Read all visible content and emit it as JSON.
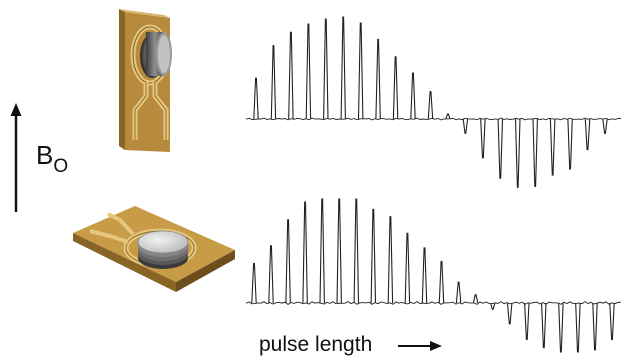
{
  "labels": {
    "field": "B",
    "field_subscript": "O",
    "pulse_length": "pulse length"
  },
  "colors": {
    "board": "#c89b46",
    "board_dark": "#8a6326",
    "board_light": "#e0c07a",
    "trace": "#6a4a1c",
    "sample": "#9c9c9c",
    "sample_dark": "#505050",
    "sample_light": "#d8d8d8",
    "spectrum": "#222222"
  },
  "spectra": {
    "top": [
      0.4,
      0.72,
      0.85,
      0.93,
      0.98,
      1.0,
      0.94,
      0.78,
      0.61,
      0.45,
      0.27,
      0.05,
      -0.14,
      -0.38,
      -0.58,
      -0.67,
      -0.66,
      -0.55,
      -0.49,
      -0.3,
      -0.14
    ],
    "bottom": [
      0.38,
      0.55,
      0.8,
      0.97,
      1.0,
      1.0,
      1.0,
      0.9,
      0.83,
      0.67,
      0.53,
      0.4,
      0.2,
      0.08,
      -0.06,
      -0.2,
      -0.35,
      -0.43,
      -0.47,
      -0.47,
      -0.45,
      -0.35
    ]
  }
}
